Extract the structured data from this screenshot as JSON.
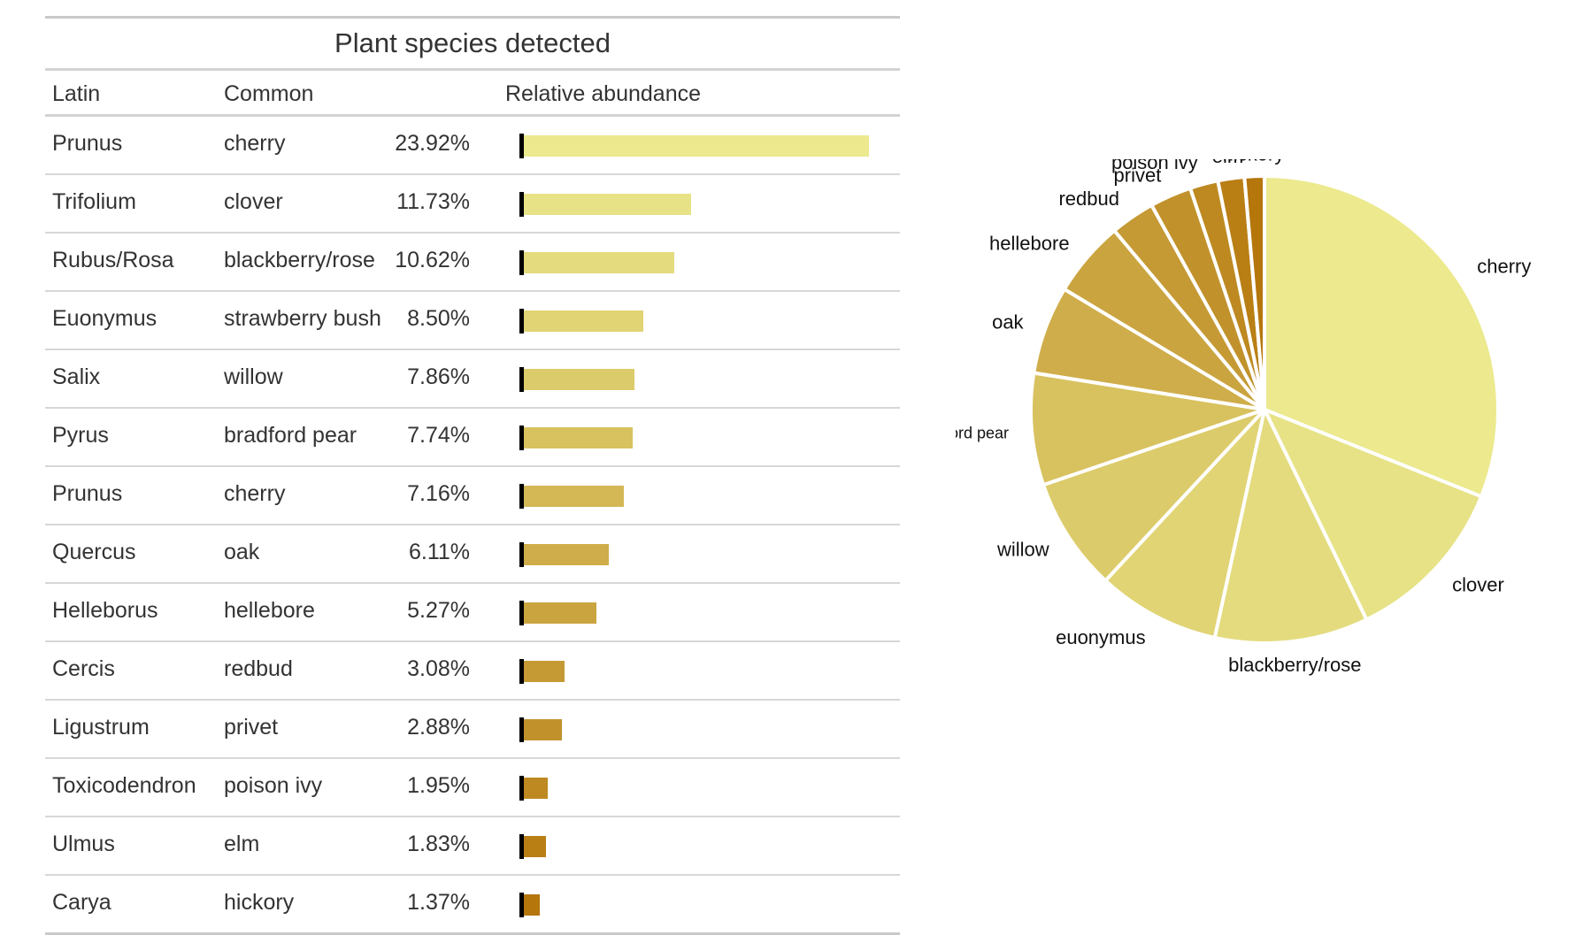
{
  "table": {
    "title": "Plant species detected",
    "headers": {
      "latin": "Latin",
      "common": "Common",
      "abundance": "Relative abundance"
    },
    "rows": [
      {
        "latin": "Prunus",
        "common": "cherry",
        "pct": "23.92%",
        "value": 23.92,
        "color": "#ece98e"
      },
      {
        "latin": "Trifolium",
        "common": "clover",
        "pct": "11.73%",
        "value": 11.73,
        "color": "#e7e286"
      },
      {
        "latin": "Rubus/Rosa",
        "common": "blackberry/rose",
        "pct": "10.62%",
        "value": 10.62,
        "color": "#e3db7d"
      },
      {
        "latin": "Euonymus",
        "common": "strawberry bush",
        "pct": "8.50%",
        "value": 8.5,
        "color": "#e0d474"
      },
      {
        "latin": "Salix",
        "common": "willow",
        "pct": "7.86%",
        "value": 7.86,
        "color": "#dccb6a"
      },
      {
        "latin": "Pyrus",
        "common": "bradford pear",
        "pct": "7.74%",
        "value": 7.74,
        "color": "#d8c25f"
      },
      {
        "latin": "Prunus",
        "common": "cherry",
        "pct": "7.16%",
        "value": 7.16,
        "color": "#d4b855"
      },
      {
        "latin": "Quercus",
        "common": "oak",
        "pct": "6.11%",
        "value": 6.11,
        "color": "#cfad4a"
      },
      {
        "latin": "Helleborus",
        "common": "hellebore",
        "pct": "5.27%",
        "value": 5.27,
        "color": "#caa43f"
      },
      {
        "latin": "Cercis",
        "common": "redbud",
        "pct": "3.08%",
        "value": 3.08,
        "color": "#c59a35"
      },
      {
        "latin": "Ligustrum",
        "common": "privet",
        "pct": "2.88%",
        "value": 2.88,
        "color": "#c1922b"
      },
      {
        "latin": "Toxicodendron",
        "common": "poison ivy",
        "pct": "1.95%",
        "value": 1.95,
        "color": "#bd8920"
      },
      {
        "latin": "Ulmus",
        "common": "elm",
        "pct": "1.83%",
        "value": 1.83,
        "color": "#b97f15"
      },
      {
        "latin": "Carya",
        "common": "hickory",
        "pct": "1.37%",
        "value": 1.37,
        "color": "#b5760c"
      }
    ]
  },
  "chart_data": {
    "type": "pie",
    "title": "",
    "slices": [
      {
        "label": "cherry",
        "value": 31.08,
        "color": "#ece98e"
      },
      {
        "label": "clover",
        "value": 11.73,
        "color": "#e7e286"
      },
      {
        "label": "blackberry/rose",
        "value": 10.62,
        "color": "#e3db7d"
      },
      {
        "label": "euonymus",
        "value": 8.5,
        "color": "#e0d474"
      },
      {
        "label": "willow",
        "value": 7.86,
        "color": "#dccb6a"
      },
      {
        "label": "bradford pear",
        "value": 7.74,
        "color": "#d8c25f"
      },
      {
        "label": "oak",
        "value": 6.11,
        "color": "#cfad4a"
      },
      {
        "label": "hellebore",
        "value": 5.27,
        "color": "#caa43f"
      },
      {
        "label": "redbud",
        "value": 3.08,
        "color": "#c59a35"
      },
      {
        "label": "privet",
        "value": 2.88,
        "color": "#c1922b"
      },
      {
        "label": "poison ivy",
        "value": 1.95,
        "color": "#bd8920"
      },
      {
        "label": "elm",
        "value": 1.83,
        "color": "#b97f15"
      },
      {
        "label": "hickory",
        "value": 1.37,
        "color": "#b5760c"
      }
    ]
  }
}
